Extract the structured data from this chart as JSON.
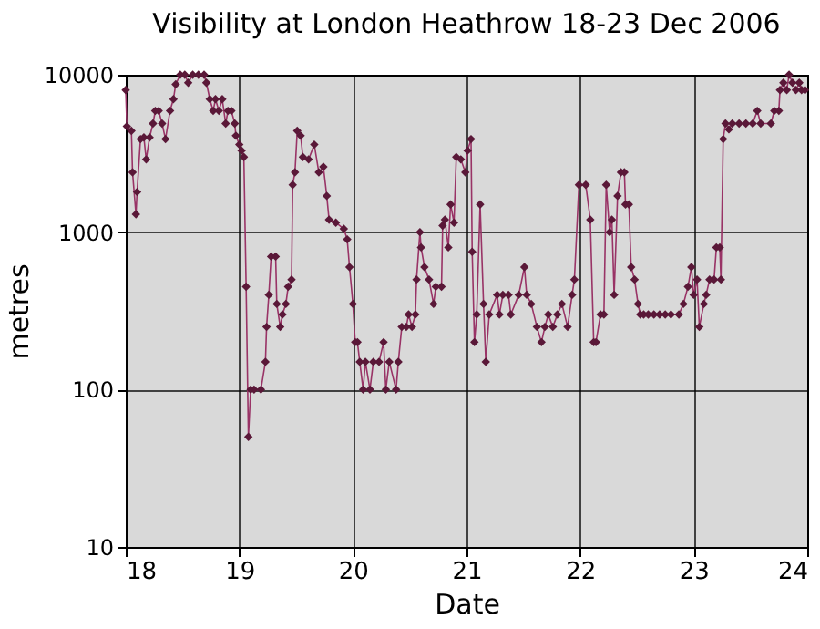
{
  "chart_data": {
    "type": "line",
    "title": "Visibility at London Heathrow 18-23 Dec 2006",
    "xlabel": "Date",
    "ylabel": "metres",
    "xlim": [
      18,
      24
    ],
    "xticks": [
      18,
      19,
      20,
      21,
      22,
      23,
      24
    ],
    "ylim": [
      10,
      10000
    ],
    "yticks": [
      10,
      100,
      1000,
      10000
    ],
    "log": "y",
    "grid": true,
    "marker": "diamond",
    "line_style": "solid",
    "series": [
      {
        "color": "#993366",
        "x": [
          18.0,
          18.01,
          18.05,
          18.06,
          18.09,
          18.1,
          18.13,
          18.16,
          18.18,
          18.21,
          18.24,
          18.26,
          18.29,
          18.32,
          18.35,
          18.39,
          18.42,
          18.44,
          18.48,
          18.52,
          18.55,
          18.59,
          18.64,
          18.69,
          18.71,
          18.74,
          18.77,
          18.79,
          18.82,
          18.85,
          18.88,
          18.9,
          18.93,
          18.96,
          18.97,
          19.0,
          19.02,
          19.04,
          19.06,
          19.08,
          19.1,
          19.13,
          19.19,
          19.23,
          19.24,
          19.26,
          19.28,
          19.32,
          19.33,
          19.36,
          19.38,
          19.41,
          19.43,
          19.46,
          19.47,
          19.49,
          19.51,
          19.54,
          19.56,
          19.61,
          19.66,
          19.7,
          19.74,
          19.77,
          19.79,
          19.85,
          19.92,
          19.95,
          19.97,
          20.0,
          20.02,
          20.04,
          20.06,
          20.09,
          20.11,
          20.15,
          20.18,
          20.23,
          20.27,
          20.29,
          20.32,
          20.38,
          20.4,
          20.43,
          20.47,
          20.49,
          20.52,
          20.55,
          20.56,
          20.59,
          20.6,
          20.63,
          20.67,
          20.71,
          20.73,
          20.78,
          20.79,
          20.81,
          20.84,
          20.86,
          20.89,
          20.91,
          20.95,
          20.99,
          21.01,
          21.04,
          21.05,
          21.07,
          21.09,
          21.12,
          21.15,
          21.17,
          21.2,
          21.27,
          21.29,
          21.32,
          21.37,
          21.39,
          21.46,
          21.51,
          21.53,
          21.57,
          21.62,
          21.66,
          21.69,
          21.72,
          21.76,
          21.8,
          21.84,
          21.89,
          21.93,
          21.95,
          21.99,
          22.05,
          22.09,
          22.12,
          22.14,
          22.18,
          22.21,
          22.23,
          22.26,
          22.28,
          22.3,
          22.33,
          22.36,
          22.39,
          22.4,
          22.43,
          22.45,
          22.48,
          22.51,
          22.53,
          22.56,
          22.6,
          22.65,
          22.7,
          22.75,
          22.8,
          22.87,
          22.91,
          22.95,
          22.98,
          23.0,
          23.03,
          23.05,
          23.09,
          23.11,
          23.14,
          23.18,
          23.2,
          23.23,
          23.24,
          23.26,
          23.28,
          23.31,
          23.34,
          23.4,
          23.46,
          23.52,
          23.56,
          23.59,
          23.68,
          23.71,
          23.75,
          23.76,
          23.79,
          23.82,
          23.84,
          23.87,
          23.9,
          23.93,
          23.95,
          23.98
        ],
        "values": [
          8000,
          4700,
          4400,
          2400,
          1300,
          1800,
          3900,
          4000,
          2900,
          4000,
          4900,
          5900,
          5900,
          4900,
          3900,
          5900,
          7000,
          8700,
          10000,
          10000,
          8900,
          10000,
          10000,
          10000,
          8900,
          7000,
          5900,
          7000,
          5900,
          7000,
          4900,
          5900,
          5900,
          4900,
          4100,
          3600,
          3300,
          3000,
          450,
          50,
          100,
          100,
          100,
          150,
          250,
          400,
          700,
          700,
          350,
          250,
          300,
          350,
          450,
          500,
          2000,
          2400,
          4400,
          4100,
          3000,
          2900,
          3600,
          2400,
          2600,
          1700,
          1200,
          1150,
          1050,
          900,
          600,
          350,
          200,
          200,
          150,
          100,
          150,
          100,
          150,
          150,
          200,
          100,
          150,
          100,
          150,
          250,
          250,
          300,
          250,
          300,
          500,
          1000,
          800,
          600,
          500,
          350,
          450,
          450,
          1100,
          1200,
          800,
          1500,
          1150,
          3000,
          2900,
          2400,
          3300,
          3900,
          750,
          200,
          300,
          1500,
          350,
          150,
          300,
          400,
          300,
          400,
          400,
          300,
          400,
          600,
          400,
          350,
          250,
          200,
          250,
          300,
          250,
          300,
          350,
          250,
          400,
          500,
          2000,
          2000,
          1200,
          200,
          200,
          300,
          300,
          2000,
          1000,
          1200,
          400,
          1700,
          2400,
          2400,
          1500,
          1500,
          600,
          500,
          350,
          300,
          300,
          300,
          300,
          300,
          300,
          300,
          300,
          350,
          450,
          600,
          400,
          500,
          250,
          350,
          400,
          500,
          500,
          800,
          800,
          500,
          3900,
          4900,
          4500,
          4900,
          4900,
          4900,
          4900,
          5900,
          4900,
          4900,
          5900,
          5900,
          8000,
          8900,
          8000,
          10000,
          8900,
          8000,
          8900,
          8000,
          8000
        ]
      }
    ]
  }
}
